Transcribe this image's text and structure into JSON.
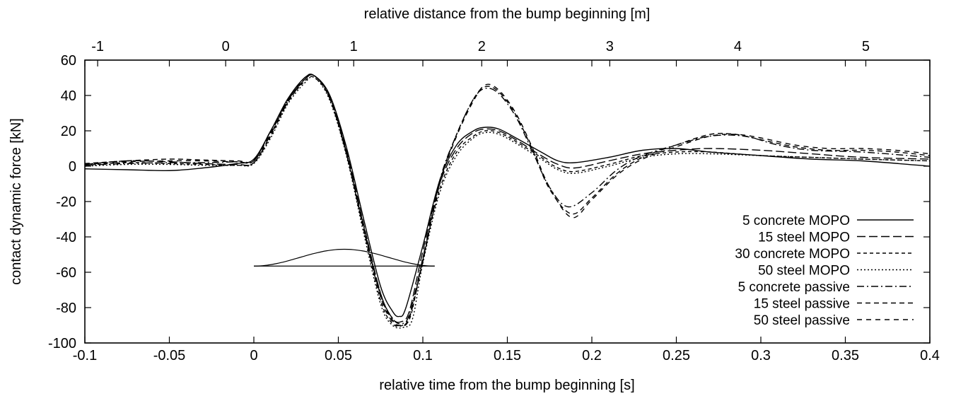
{
  "chart_data": {
    "type": "line",
    "title": "",
    "xlabel": "relative time from the bump beginning [s]",
    "x2label": "relative distance from the bump beginning [m]",
    "ylabel": "contact dynamic force [kN]",
    "xlim": [
      -0.1,
      0.4
    ],
    "ylim": [
      -100,
      60
    ],
    "x2lim": [
      -1.1,
      5.5
    ],
    "xticks": [
      "-0.1",
      "-0.05",
      "0",
      "0.05",
      "0.1",
      "0.15",
      "0.2",
      "0.25",
      "0.3",
      "0.35",
      "0.4"
    ],
    "x2ticks": [
      "-1",
      "0",
      "1",
      "2",
      "3",
      "4",
      "5"
    ],
    "yticks": [
      "60",
      "40",
      "20",
      "0",
      "-20",
      "-40",
      "-60",
      "-80",
      "-100"
    ],
    "legend_position": "bottom-right",
    "grid": false,
    "series": [
      {
        "name": "5 concrete MOPO",
        "dash": "solid",
        "x": [
          -0.1,
          -0.075,
          -0.05,
          -0.03,
          -0.01,
          0,
          0.01,
          0.02,
          0.03,
          0.036,
          0.045,
          0.055,
          0.065,
          0.075,
          0.082,
          0.086,
          0.09,
          0.1,
          0.11,
          0.12,
          0.13,
          0.137,
          0.145,
          0.155,
          0.17,
          0.18,
          0.19,
          0.21,
          0.23,
          0.25,
          0.27,
          0.3,
          0.33,
          0.36,
          0.4
        ],
        "y": [
          -1.5,
          -2,
          -2.5,
          -1,
          1.5,
          4,
          20,
          38,
          50,
          51,
          40,
          10,
          -30,
          -68,
          -82,
          -85,
          -80,
          -45,
          -8,
          12,
          20,
          22,
          21,
          16,
          8,
          3,
          2,
          5,
          9,
          10,
          8,
          6,
          4,
          3,
          0
        ]
      },
      {
        "name": "15 steel MOPO",
        "dash": "12,5",
        "x": [
          -0.1,
          -0.075,
          -0.05,
          -0.03,
          -0.01,
          0,
          0.01,
          0.02,
          0.03,
          0.036,
          0.045,
          0.055,
          0.065,
          0.075,
          0.082,
          0.087,
          0.092,
          0.1,
          0.11,
          0.12,
          0.13,
          0.137,
          0.145,
          0.155,
          0.17,
          0.18,
          0.19,
          0.21,
          0.23,
          0.25,
          0.27,
          0.3,
          0.33,
          0.36,
          0.4
        ],
        "y": [
          1,
          3,
          2.5,
          1.5,
          1,
          2,
          18,
          37,
          49,
          51,
          39,
          8,
          -33,
          -72,
          -86,
          -88,
          -82,
          -48,
          -10,
          10,
          19,
          21,
          20,
          15,
          6,
          1,
          -1,
          3,
          7,
          9,
          10,
          9,
          7,
          5,
          4
        ]
      },
      {
        "name": "30 concrete MOPO",
        "dash": "5,4",
        "x": [
          -0.1,
          -0.075,
          -0.05,
          -0.03,
          -0.01,
          0,
          0.01,
          0.02,
          0.03,
          0.036,
          0.045,
          0.055,
          0.065,
          0.075,
          0.082,
          0.088,
          0.093,
          0.1,
          0.11,
          0.12,
          0.13,
          0.137,
          0.145,
          0.155,
          0.17,
          0.18,
          0.19,
          0.21,
          0.23,
          0.25,
          0.27,
          0.3,
          0.33,
          0.36,
          0.4
        ],
        "y": [
          0.5,
          2,
          1.5,
          1,
          0.5,
          2,
          17,
          36,
          48,
          50,
          38,
          6,
          -36,
          -76,
          -89,
          -90,
          -84,
          -52,
          -13,
          8,
          17,
          20,
          19,
          14,
          5,
          -1,
          -3,
          1,
          6,
          8,
          8,
          6,
          5,
          4,
          3
        ]
      },
      {
        "name": "50 steel MOPO",
        "dash": "2,3",
        "x": [
          -0.1,
          -0.075,
          -0.05,
          -0.03,
          -0.01,
          0,
          0.01,
          0.02,
          0.03,
          0.036,
          0.045,
          0.055,
          0.065,
          0.075,
          0.082,
          0.089,
          0.094,
          0.1,
          0.11,
          0.12,
          0.13,
          0.137,
          0.145,
          0.155,
          0.17,
          0.18,
          0.19,
          0.21,
          0.23,
          0.25,
          0.27,
          0.3,
          0.33,
          0.36,
          0.4
        ],
        "y": [
          0,
          1,
          1,
          0.5,
          0.5,
          1.5,
          16,
          35,
          47,
          50,
          37,
          5,
          -38,
          -78,
          -90,
          -91,
          -86,
          -55,
          -15,
          6,
          16,
          19,
          18,
          13,
          4,
          -2,
          -4,
          0,
          5,
          7,
          7,
          6,
          5,
          4,
          3
        ]
      },
      {
        "name": "5 concrete passive",
        "dash": "10,4,2,4",
        "x": [
          -0.1,
          -0.075,
          -0.05,
          -0.03,
          -0.01,
          0,
          0.01,
          0.02,
          0.03,
          0.036,
          0.045,
          0.055,
          0.065,
          0.075,
          0.082,
          0.087,
          0.092,
          0.1,
          0.11,
          0.12,
          0.13,
          0.137,
          0.145,
          0.155,
          0.165,
          0.175,
          0.186,
          0.2,
          0.215,
          0.23,
          0.25,
          0.27,
          0.29,
          0.31,
          0.33,
          0.36,
          0.4
        ],
        "y": [
          0.5,
          1.5,
          2,
          2,
          2.5,
          3,
          20,
          37,
          49,
          51,
          39,
          7,
          -34,
          -72,
          -86,
          -89,
          -84,
          -52,
          -8,
          18,
          38,
          44,
          41,
          28,
          8,
          -12,
          -23,
          -15,
          -2,
          6,
          12,
          17,
          17,
          12,
          9,
          8,
          5
        ]
      },
      {
        "name": "15 steel passive",
        "dash": "7,5",
        "x": [
          -0.1,
          -0.075,
          -0.05,
          -0.03,
          -0.01,
          0,
          0.01,
          0.02,
          0.03,
          0.036,
          0.045,
          0.055,
          0.065,
          0.075,
          0.082,
          0.087,
          0.092,
          0.1,
          0.11,
          0.12,
          0.13,
          0.137,
          0.145,
          0.155,
          0.165,
          0.175,
          0.188,
          0.2,
          0.215,
          0.23,
          0.25,
          0.27,
          0.285,
          0.3,
          0.32,
          0.34,
          0.36,
          0.38,
          0.4
        ],
        "y": [
          1.5,
          3,
          4,
          3.5,
          3,
          3.5,
          20,
          37,
          50,
          51,
          39,
          7,
          -35,
          -73,
          -87,
          -90,
          -85,
          -53,
          -9,
          18,
          38,
          45,
          42,
          29,
          9,
          -13,
          -27,
          -18,
          -4,
          5,
          12,
          18,
          18,
          15,
          11,
          9,
          9,
          8,
          6
        ]
      },
      {
        "name": "50 steel passive",
        "dash": "7,6",
        "x": [
          -0.1,
          -0.075,
          -0.05,
          -0.03,
          -0.01,
          0,
          0.01,
          0.02,
          0.03,
          0.036,
          0.045,
          0.055,
          0.065,
          0.075,
          0.082,
          0.087,
          0.092,
          0.1,
          0.11,
          0.12,
          0.13,
          0.137,
          0.145,
          0.155,
          0.165,
          0.175,
          0.188,
          0.2,
          0.215,
          0.23,
          0.25,
          0.27,
          0.285,
          0.3,
          0.32,
          0.34,
          0.36,
          0.38,
          0.4
        ],
        "y": [
          1,
          2.5,
          3,
          3,
          2.5,
          3,
          19,
          36,
          49,
          51,
          38,
          6,
          -36,
          -74,
          -88,
          -90,
          -86,
          -54,
          -10,
          17,
          37,
          46,
          43,
          30,
          10,
          -12,
          -29,
          -19,
          -5,
          4,
          11,
          17,
          18,
          16,
          12,
          10,
          10,
          9,
          7
        ]
      }
    ],
    "annotation": {
      "description_shape": "bump",
      "x_start": 0,
      "x_end": 0.107,
      "baseline_y": -56.5,
      "peak_y": -47,
      "peak_x": 0.053
    }
  }
}
